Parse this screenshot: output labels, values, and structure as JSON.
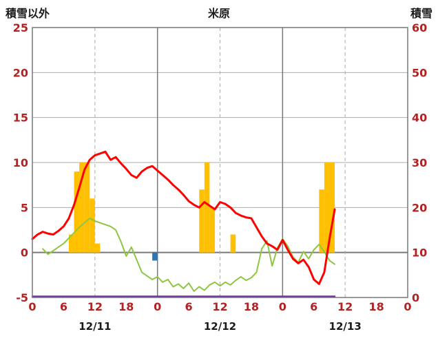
{
  "colors": {
    "background": "#FFFFFF",
    "axis_text": "#B22222",
    "date_text": "#1A1A1A",
    "header_text": "#1A1A1A",
    "grid": "#ABABAB",
    "grid_strong": "#777777",
    "border": "#777777",
    "red_line": "#FF0000",
    "green_line": "#8DC63F",
    "orange_bar": "#FFC000",
    "blue_bar": "#2E75B6",
    "purple_line": "#7030A0"
  },
  "chart_data": {
    "type": "combo bar+line time series",
    "title": "米原",
    "left_axis": {
      "title": "積雪以外",
      "min": -5,
      "max": 25,
      "ticks": [
        25,
        20,
        15,
        10,
        5,
        0,
        -5
      ]
    },
    "right_axis": {
      "title": "積雪",
      "min": 0,
      "max": 60,
      "ticks": [
        60,
        50,
        40,
        30,
        20,
        10,
        0
      ]
    },
    "x_axis": {
      "total_hours": 72,
      "tick_step": 6,
      "tick_labels": [
        "0",
        "6",
        "12",
        "18",
        "0",
        "6",
        "12",
        "18",
        "0",
        "6",
        "12",
        "18",
        "0"
      ],
      "date_labels": [
        {
          "label": "12/11",
          "center_hour": 12
        },
        {
          "label": "12/12",
          "center_hour": 36
        },
        {
          "label": "12/13",
          "center_hour": 60
        }
      ]
    },
    "gridlines": {
      "horizontal_left_values": [
        20,
        15,
        10,
        5
      ],
      "zero_line_left_value": 0,
      "vertical_solid_hours": [
        24,
        48
      ],
      "vertical_dashed_hours": [
        12,
        36,
        60
      ]
    },
    "series": [
      {
        "id": "orange-bars",
        "type": "bar",
        "axis": "left",
        "color_key": "orange_bar",
        "points": [
          [
            8,
            2
          ],
          [
            9,
            9
          ],
          [
            10,
            10
          ],
          [
            11,
            10
          ],
          [
            12,
            6
          ],
          [
            13,
            1
          ],
          [
            33,
            7
          ],
          [
            34,
            10
          ],
          [
            35,
            5
          ],
          [
            39,
            2
          ],
          [
            56,
            7
          ],
          [
            57,
            10
          ],
          [
            58,
            10
          ]
        ]
      },
      {
        "id": "blue-bar",
        "type": "bar",
        "axis": "left",
        "color_key": "blue_bar",
        "points": [
          [
            24,
            -0.9
          ]
        ]
      },
      {
        "id": "purple-baseline",
        "type": "line",
        "axis": "right",
        "width": 2.5,
        "color_key": "purple_line",
        "points": [
          [
            0,
            0
          ],
          [
            58,
            0
          ]
        ]
      },
      {
        "id": "green-line",
        "type": "line",
        "axis": "left",
        "width": 2,
        "color_key": "green_line",
        "points": [
          [
            2,
            0.4
          ],
          [
            3,
            -0.2
          ],
          [
            4,
            0.2
          ],
          [
            5,
            0.6
          ],
          [
            6,
            1.0
          ],
          [
            7,
            1.6
          ],
          [
            8,
            2.2
          ],
          [
            9,
            2.8
          ],
          [
            10,
            3.3
          ],
          [
            11,
            3.8
          ],
          [
            12,
            3.5
          ],
          [
            13,
            3.3
          ],
          [
            14,
            3.1
          ],
          [
            15,
            2.9
          ],
          [
            16,
            2.5
          ],
          [
            17,
            1.2
          ],
          [
            18,
            -0.4
          ],
          [
            19,
            0.6
          ],
          [
            20,
            -0.8
          ],
          [
            21,
            -2.2
          ],
          [
            22,
            -2.6
          ],
          [
            23,
            -3.0
          ],
          [
            24,
            -2.7
          ],
          [
            25,
            -3.3
          ],
          [
            26,
            -3.0
          ],
          [
            27,
            -3.8
          ],
          [
            28,
            -3.5
          ],
          [
            29,
            -4.0
          ],
          [
            30,
            -3.4
          ],
          [
            31,
            -4.3
          ],
          [
            32,
            -3.8
          ],
          [
            33,
            -4.2
          ],
          [
            34,
            -3.6
          ],
          [
            35,
            -3.3
          ],
          [
            36,
            -3.7
          ],
          [
            37,
            -3.3
          ],
          [
            38,
            -3.6
          ],
          [
            39,
            -3.1
          ],
          [
            40,
            -2.7
          ],
          [
            41,
            -3.1
          ],
          [
            42,
            -2.8
          ],
          [
            43,
            -2.2
          ],
          [
            44,
            0.4
          ],
          [
            45,
            1.3
          ],
          [
            46,
            -1.5
          ],
          [
            47,
            0.5
          ],
          [
            48,
            1.5
          ],
          [
            49,
            0.7
          ],
          [
            50,
            -0.5
          ],
          [
            51,
            -1.1
          ],
          [
            52,
            0.1
          ],
          [
            53,
            -0.7
          ],
          [
            54,
            0.3
          ],
          [
            55,
            0.9
          ],
          [
            56,
            0.1
          ],
          [
            57,
            -0.9
          ],
          [
            58,
            -1.3
          ]
        ]
      },
      {
        "id": "red-line",
        "type": "line",
        "axis": "left",
        "width": 3,
        "color_key": "red_line",
        "points": [
          [
            0,
            1.5
          ],
          [
            1,
            2.0
          ],
          [
            2,
            2.3
          ],
          [
            3,
            2.1
          ],
          [
            4,
            2.0
          ],
          [
            5,
            2.4
          ],
          [
            6,
            2.9
          ],
          [
            7,
            3.8
          ],
          [
            8,
            5.3
          ],
          [
            9,
            7.2
          ],
          [
            10,
            9.2
          ],
          [
            11,
            10.3
          ],
          [
            12,
            10.8
          ],
          [
            13,
            11.0
          ],
          [
            14,
            11.2
          ],
          [
            15,
            10.3
          ],
          [
            16,
            10.6
          ],
          [
            17,
            9.9
          ],
          [
            18,
            9.3
          ],
          [
            19,
            8.6
          ],
          [
            20,
            8.3
          ],
          [
            21,
            9.0
          ],
          [
            22,
            9.4
          ],
          [
            23,
            9.6
          ],
          [
            24,
            9.1
          ],
          [
            25,
            8.6
          ],
          [
            26,
            8.1
          ],
          [
            27,
            7.5
          ],
          [
            28,
            7.0
          ],
          [
            29,
            6.4
          ],
          [
            30,
            5.7
          ],
          [
            31,
            5.3
          ],
          [
            32,
            5.0
          ],
          [
            33,
            5.6
          ],
          [
            34,
            5.2
          ],
          [
            35,
            4.8
          ],
          [
            36,
            5.6
          ],
          [
            37,
            5.4
          ],
          [
            38,
            5.0
          ],
          [
            39,
            4.4
          ],
          [
            40,
            4.1
          ],
          [
            41,
            3.9
          ],
          [
            42,
            3.8
          ],
          [
            43,
            2.8
          ],
          [
            44,
            1.8
          ],
          [
            45,
            1.0
          ],
          [
            46,
            0.7
          ],
          [
            47,
            0.3
          ],
          [
            48,
            1.4
          ],
          [
            49,
            0.3
          ],
          [
            50,
            -0.7
          ],
          [
            51,
            -1.2
          ],
          [
            52,
            -0.8
          ],
          [
            53,
            -1.6
          ],
          [
            54,
            -3.0
          ],
          [
            55,
            -3.5
          ],
          [
            56,
            -2.2
          ],
          [
            57,
            1.5
          ],
          [
            58,
            4.8
          ]
        ]
      }
    ]
  }
}
